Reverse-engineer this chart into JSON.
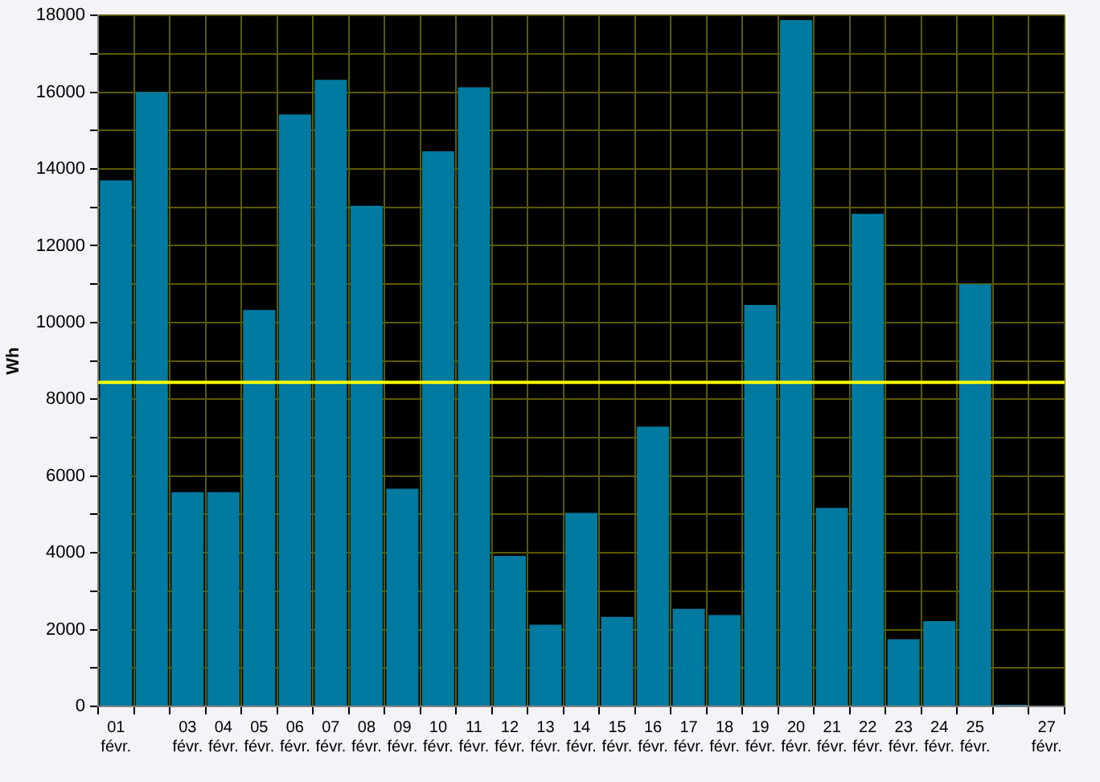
{
  "chart_data": {
    "type": "bar",
    "ylabel": "Wh",
    "categories": [
      "01 févr.",
      null,
      "03 févr.",
      "04 févr.",
      "05 févr.",
      "06 févr.",
      "07 févr.",
      "08 févr.",
      "09 févr.",
      "10 févr.",
      "11 févr.",
      "12 févr.",
      "13 févr.",
      "14 févr.",
      "15 févr.",
      "16 févr.",
      "17 févr.",
      "18 févr.",
      "19 févr.",
      "20 févr.",
      "21 févr.",
      "22 févr.",
      "23 févr.",
      "24 févr.",
      "25 févr.",
      null,
      "27 févr."
    ],
    "values": [
      13700,
      16000,
      5580,
      5580,
      10330,
      15420,
      16320,
      13040,
      5670,
      14460,
      16130,
      3920,
      2130,
      5040,
      2330,
      7290,
      2540,
      2380,
      10460,
      17880,
      5170,
      12830,
      1750,
      2220,
      11000,
      40,
      null
    ],
    "color": "#007aa0",
    "ylim": [
      0,
      18000
    ],
    "yticks": [
      0,
      {
        "value": 1000,
        "label": null
      },
      2000,
      {
        "value": 3000,
        "label": null
      },
      4000,
      {
        "value": 5000,
        "label": null
      },
      6000,
      {
        "value": 7000,
        "label": null
      },
      8000,
      {
        "value": 9000,
        "label": null
      },
      10000,
      {
        "value": 11000,
        "label": null
      },
      12000,
      {
        "value": 13000,
        "label": null
      },
      14000,
      {
        "value": 15000,
        "label": null
      },
      16000,
      {
        "value": 17000,
        "label": null
      },
      18000
    ],
    "grid": true,
    "ref_lines": [
      {
        "axis": "y",
        "value": 8440,
        "color": "#ffff00"
      }
    ]
  }
}
